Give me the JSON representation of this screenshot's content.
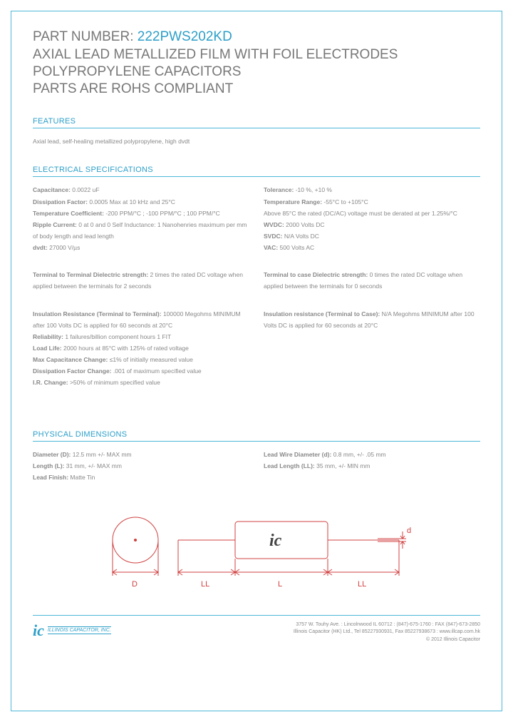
{
  "header": {
    "part_label": "PART NUMBER: ",
    "part_number": "222PWS202KD",
    "title_line1": "AXIAL LEAD METALLIZED FILM WITH FOIL ELECTRODES",
    "title_line2": "POLYPROPYLENE CAPACITORS",
    "title_line3": "PARTS ARE ROHS COMPLIANT"
  },
  "features": {
    "heading": "FEATURES",
    "text": "Axial lead, self-healing metallized polypropylene, high dvdt"
  },
  "electrical": {
    "heading": "ELECTRICAL SPECIFICATIONS",
    "left": {
      "b1": [
        {
          "k": "Capacitance:",
          "v": " 0.0022 uF"
        },
        {
          "k": "Dissipation Factor:",
          "v": " 0.0005 Max at 10 kHz and 25°C"
        },
        {
          "k": "Temperature Coefficient:",
          "v": " -200 PPM/°C ; -100 PPM/°C ; 100 PPM/°C"
        },
        {
          "k": "Ripple Current:",
          "v": " 0 at 0 and 0 Self Inductance: 1 Nanohenries maximum per mm of body length and lead length"
        },
        {
          "k": "dvdt:",
          "v": " 27000 V/µs"
        }
      ],
      "b2": [
        {
          "k": "Terminal to Terminal Dielectric strength:",
          "v": " 2 times the rated DC voltage when applied between the terminals for 2 seconds"
        }
      ],
      "b3": [
        {
          "k": "Insulation Resistance (Terminal to Terminal):",
          "v": " 100000 Megohms MINIMUM after 100 Volts DC is applied for 60 seconds at 20°C"
        },
        {
          "k": "Reliability:",
          "v": " 1 failures/billion component hours 1 FIT"
        },
        {
          "k": "Load Life:",
          "v": " 2000 hours at 85°C with 125% of rated voltage"
        },
        {
          "k": "Max Capacitance Change:",
          "v": " ≤1% of initially measured value"
        },
        {
          "k": "Dissipation Factor Change:",
          "v": " .001 of maximum specified value"
        },
        {
          "k": "I.R. Change:",
          "v": " >50% of minimum specified value"
        }
      ]
    },
    "right": {
      "b1": [
        {
          "k": "Tolerance:",
          "v": " -10 %, +10 %"
        },
        {
          "k": "Temperature Range:",
          "v": " -55°C to +105°C"
        },
        {
          "k": "",
          "v": "Above 85°C the rated (DC/AC) voltage must be derated at per 1.25%/°C"
        },
        {
          "k": "WVDC:",
          "v": " 2000 Volts DC"
        },
        {
          "k": "SVDC:",
          "v": " N/A Volts DC"
        },
        {
          "k": "VAC:",
          "v": " 500 Volts AC"
        }
      ],
      "b2": [
        {
          "k": "Terminal to case Dielectric strength:",
          "v": " 0 times the rated DC voltage when applied between the terminals for 0 seconds"
        }
      ],
      "b3": [
        {
          "k": "Insulation resistance (Terminal to Case):",
          "v": " N/A Megohms MINIMUM after 100 Volts DC is applied for 60 seconds at 20°C"
        }
      ]
    }
  },
  "physical": {
    "heading": "PHYSICAL DIMENSIONS",
    "left": [
      {
        "k": "Diameter (D):",
        "v": " 12.5 mm +/- MAX mm"
      },
      {
        "k": "Length (L):",
        "v": " 31 mm, +/- MAX mm"
      },
      {
        "k": "Lead Finish:",
        "v": " Matte Tin"
      }
    ],
    "right": [
      {
        "k": "Lead Wire Diameter (d):",
        "v": " 0.8 mm, +/- .05 mm"
      },
      {
        "k": "Lead Length (LL):",
        "v": " 35 mm, +/- MIN mm"
      }
    ]
  },
  "diagram": {
    "labels": {
      "D": "D",
      "LL1": "LL",
      "L": "L",
      "LL2": "LL",
      "d": "d",
      "ic": "ic"
    },
    "colors": {
      "stroke": "#d04040",
      "text": "#d04040",
      "ic": "#444"
    }
  },
  "footer": {
    "logo_ic": "ic",
    "logo_text": "ILLINOIS CAPACITOR, INC.",
    "line1": "3757 W. Touhy Ave. : Lincolnwood IL 60712 : (847)-675-1760 : FAX (847)-673-2850",
    "line2": "Illinois Capacitor (HK) Ltd., Tel 85227930931, Fax 85227938673 : www.illcap.com.hk",
    "line3": "© 2012 Illinois Capacitor"
  }
}
